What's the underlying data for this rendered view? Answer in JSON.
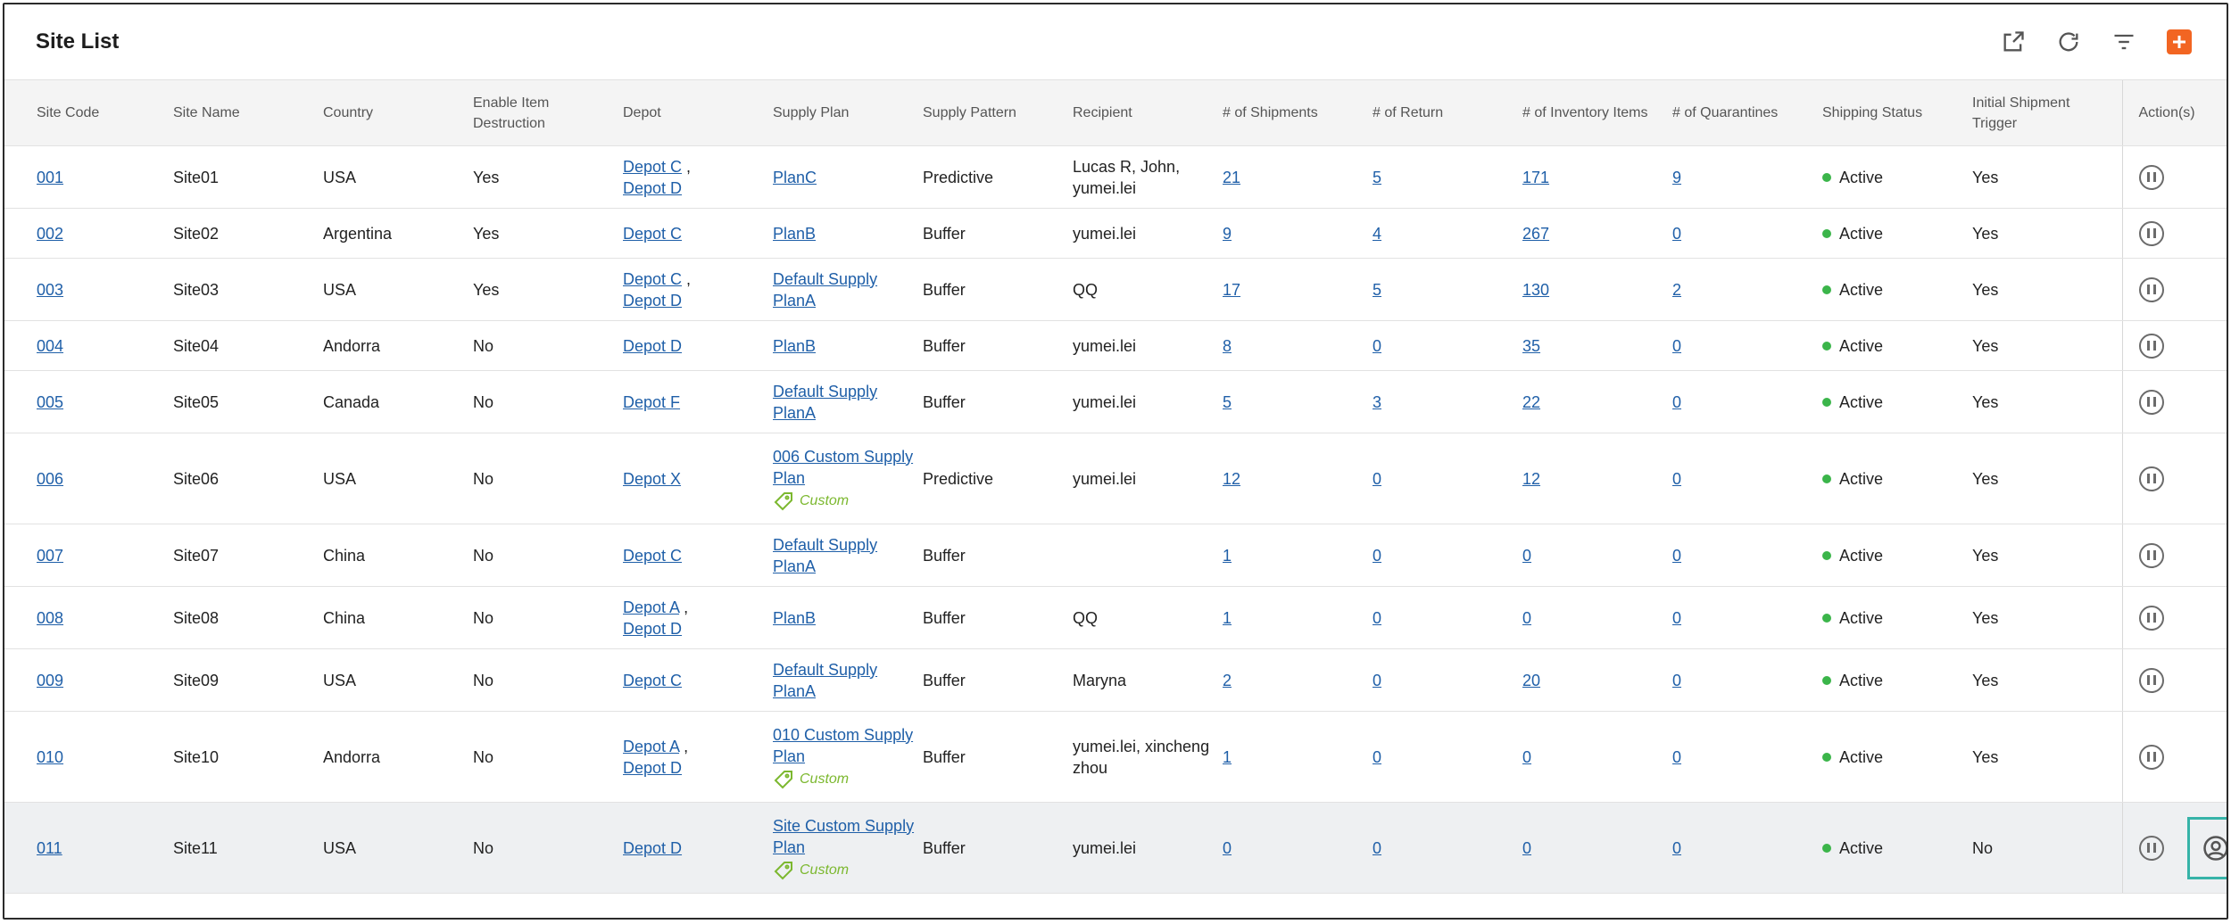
{
  "header": {
    "title": "Site List",
    "icons": [
      "export-icon",
      "refresh-icon",
      "filter-icon",
      "plus-icon"
    ],
    "accent_color": "#f26522"
  },
  "columns": [
    "Site Code",
    "Site Name",
    "Country",
    "Enable Item Destruction",
    "Depot",
    "Supply Plan",
    "Supply Pattern",
    "Recipient",
    "# of Shipments",
    "# of Return",
    "# of Inventory Items",
    "# of Quarantines",
    "Shipping Status",
    "Initial Shipment Trigger",
    "Action(s)"
  ],
  "custom_label": "Custom",
  "rows": [
    {
      "code": "001",
      "name": "Site01",
      "country": "USA",
      "destruction": "Yes",
      "depots": [
        "Depot C",
        "Depot D"
      ],
      "plan": "PlanC",
      "plan_custom": false,
      "pattern": "Predictive",
      "recipient": "Lucas R, John, yumei.lei",
      "shipments": "21",
      "returns": "5",
      "inventory": "171",
      "quarantines": "9",
      "status": "Active",
      "trigger": "Yes"
    },
    {
      "code": "002",
      "name": "Site02",
      "country": "Argentina",
      "destruction": "Yes",
      "depots": [
        "Depot C"
      ],
      "plan": "PlanB",
      "plan_custom": false,
      "pattern": "Buffer",
      "recipient": "yumei.lei",
      "shipments": "9",
      "returns": "4",
      "inventory": "267",
      "quarantines": "0",
      "status": "Active",
      "trigger": "Yes"
    },
    {
      "code": "003",
      "name": "Site03",
      "country": "USA",
      "destruction": "Yes",
      "depots": [
        "Depot C",
        "Depot D"
      ],
      "plan": "Default Supply PlanA",
      "plan_custom": false,
      "pattern": "Buffer",
      "recipient": "QQ",
      "shipments": "17",
      "returns": "5",
      "inventory": "130",
      "quarantines": "2",
      "status": "Active",
      "trigger": "Yes"
    },
    {
      "code": "004",
      "name": "Site04",
      "country": "Andorra",
      "destruction": "No",
      "depots": [
        "Depot D"
      ],
      "plan": "PlanB",
      "plan_custom": false,
      "pattern": "Buffer",
      "recipient": "yumei.lei",
      "shipments": "8",
      "returns": "0",
      "inventory": "35",
      "quarantines": "0",
      "status": "Active",
      "trigger": "Yes"
    },
    {
      "code": "005",
      "name": "Site05",
      "country": "Canada",
      "destruction": "No",
      "depots": [
        "Depot F"
      ],
      "plan": "Default Supply PlanA",
      "plan_custom": false,
      "pattern": "Buffer",
      "recipient": "yumei.lei",
      "shipments": "5",
      "returns": "3",
      "inventory": "22",
      "quarantines": "0",
      "status": "Active",
      "trigger": "Yes"
    },
    {
      "code": "006",
      "name": "Site06",
      "country": "USA",
      "destruction": "No",
      "depots": [
        "Depot X"
      ],
      "plan": "006 Custom Supply Plan",
      "plan_custom": true,
      "pattern": "Predictive",
      "recipient": "yumei.lei",
      "shipments": "12",
      "returns": "0",
      "inventory": "12",
      "quarantines": "0",
      "status": "Active",
      "trigger": "Yes"
    },
    {
      "code": "007",
      "name": "Site07",
      "country": "China",
      "destruction": "No",
      "depots": [
        "Depot C"
      ],
      "plan": "Default Supply PlanA",
      "plan_custom": false,
      "pattern": "Buffer",
      "recipient": "",
      "shipments": "1",
      "returns": "0",
      "inventory": "0",
      "quarantines": "0",
      "status": "Active",
      "trigger": "Yes"
    },
    {
      "code": "008",
      "name": "Site08",
      "country": "China",
      "destruction": "No",
      "depots": [
        "Depot A",
        "Depot D"
      ],
      "plan": "PlanB",
      "plan_custom": false,
      "pattern": "Buffer",
      "recipient": "QQ",
      "shipments": "1",
      "returns": "0",
      "inventory": "0",
      "quarantines": "0",
      "status": "Active",
      "trigger": "Yes"
    },
    {
      "code": "009",
      "name": "Site09",
      "country": "USA",
      "destruction": "No",
      "depots": [
        "Depot C"
      ],
      "plan": "Default Supply PlanA",
      "plan_custom": false,
      "pattern": "Buffer",
      "recipient": "Maryna",
      "shipments": "2",
      "returns": "0",
      "inventory": "20",
      "quarantines": "0",
      "status": "Active",
      "trigger": "Yes"
    },
    {
      "code": "010",
      "name": "Site10",
      "country": "Andorra",
      "destruction": "No",
      "depots": [
        "Depot A",
        "Depot D"
      ],
      "plan": "010 Custom Supply Plan",
      "plan_custom": true,
      "pattern": "Buffer",
      "recipient": "yumei.lei, xincheng zhou",
      "shipments": "1",
      "returns": "0",
      "inventory": "0",
      "quarantines": "0",
      "status": "Active",
      "trigger": "Yes"
    },
    {
      "code": "011",
      "name": "Site11",
      "country": "USA",
      "destruction": "No",
      "depots": [
        "Depot D"
      ],
      "plan": "Site Custom Supply Plan",
      "plan_custom": true,
      "pattern": "Buffer",
      "recipient": "yumei.lei",
      "shipments": "0",
      "returns": "0",
      "inventory": "0",
      "quarantines": "0",
      "status": "Active",
      "trigger": "No",
      "selected": true
    }
  ],
  "status_color": "#3bb54a",
  "link_color": "#1f5fa8",
  "custom_tag_color": "#7cb82f"
}
